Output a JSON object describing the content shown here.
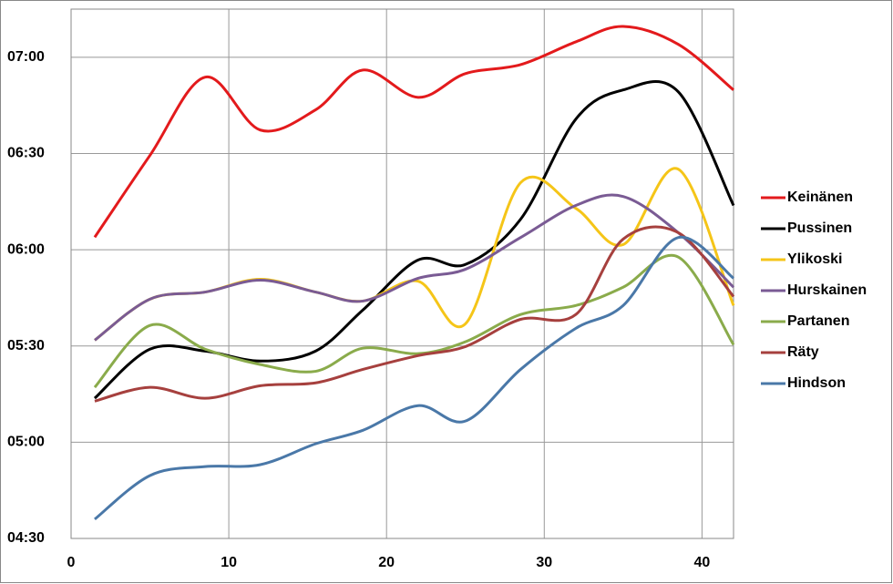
{
  "chart_data": {
    "type": "line",
    "x": [
      1.5,
      5,
      8.5,
      12,
      15.5,
      18.5,
      22,
      25,
      28.5,
      32,
      35,
      38.5,
      42
    ],
    "xlim": [
      0,
      42
    ],
    "xticks": [
      0,
      10,
      20,
      30,
      40
    ],
    "ylim": [
      270,
      435
    ],
    "yticks": [
      {
        "value": 270,
        "label": "04:30"
      },
      {
        "value": 300,
        "label": "05:00"
      },
      {
        "value": 330,
        "label": "05:30"
      },
      {
        "value": 360,
        "label": "06:00"
      },
      {
        "value": 390,
        "label": "06:30"
      },
      {
        "value": 420,
        "label": "07:00"
      }
    ],
    "grid": true,
    "legend": "right",
    "series": [
      {
        "name": "Keinänen",
        "color": "#e31a1c",
        "values": [
          363.9,
          389.4,
          413.8,
          397.3,
          403.6,
          416,
          407.5,
          414.9,
          417.7,
          424.8,
          429.6,
          424,
          409.8
        ]
      },
      {
        "name": "Pussinen",
        "color": "#000000",
        "values": [
          313.7,
          329,
          328.4,
          325.3,
          328.4,
          341.2,
          356.8,
          355.4,
          369.5,
          400.7,
          409.8,
          409.2,
          373.8
        ]
      },
      {
        "name": "Ylikoski",
        "color": "#f5c518",
        "values": [
          331.8,
          344.6,
          346.8,
          350.8,
          346.8,
          344,
          350.2,
          336.9,
          380.9,
          372.9,
          361.6,
          385.1,
          342.6
        ]
      },
      {
        "name": "Hurskainen",
        "color": "#7a5b94",
        "values": [
          331.8,
          344.6,
          346.8,
          350.5,
          346.8,
          344,
          351.1,
          353.9,
          363.8,
          373.8,
          376.6,
          365.3,
          348.3
        ]
      },
      {
        "name": "Partanen",
        "color": "#8aab4b",
        "values": [
          317.1,
          336.4,
          329,
          324.2,
          322.1,
          329.3,
          327.6,
          331.3,
          339.8,
          342.6,
          348.3,
          357.7,
          330.4
        ]
      },
      {
        "name": "Räty",
        "color": "#a6403e",
        "values": [
          312.8,
          317.1,
          313.7,
          317.6,
          318.5,
          322.7,
          327,
          329.8,
          338.3,
          339.8,
          363.3,
          365.3,
          345.4
        ]
      },
      {
        "name": "Hindson",
        "color": "#4a78a8",
        "values": [
          276,
          289.6,
          292.4,
          293,
          299.5,
          303.7,
          311.4,
          306.6,
          322.7,
          335.5,
          342.6,
          363.8,
          351.1
        ]
      }
    ]
  }
}
